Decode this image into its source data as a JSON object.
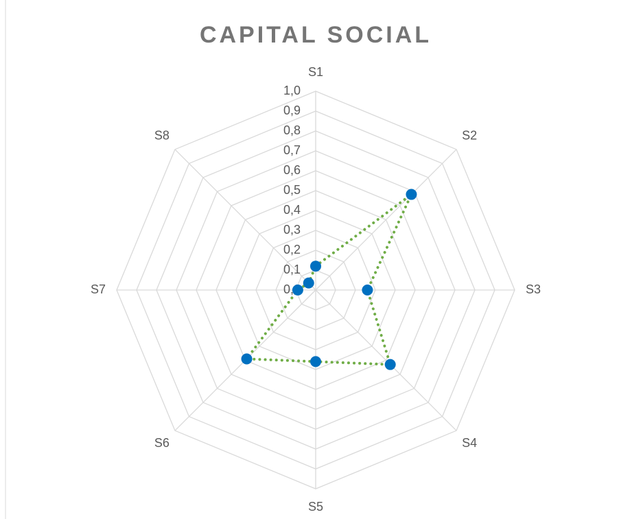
{
  "chart_data": {
    "type": "radar",
    "title": "CAPITAL SOCIAL",
    "categories": [
      "S1",
      "S2",
      "S3",
      "S4",
      "S5",
      "S6",
      "S7",
      "S8"
    ],
    "series": [
      {
        "name": "Capital social",
        "color": "#70ad47",
        "marker_color": "#0070c0",
        "values": [
          0.12,
          0.68,
          0.26,
          0.53,
          0.36,
          0.49,
          0.09,
          0.05
        ]
      }
    ],
    "ylim": [
      0,
      1
    ],
    "yticks": [
      {
        "value": 0,
        "label": "0,0"
      },
      {
        "value": 0.1,
        "label": "0,1"
      },
      {
        "value": 0.2,
        "label": "0,2"
      },
      {
        "value": 0.3,
        "label": "0,3"
      },
      {
        "value": 0.4,
        "label": "0,4"
      },
      {
        "value": 0.5,
        "label": "0,5"
      },
      {
        "value": 0.6,
        "label": "0,6"
      },
      {
        "value": 0.7,
        "label": "0,7"
      },
      {
        "value": 0.8,
        "label": "0,8"
      },
      {
        "value": 0.9,
        "label": "0,9"
      },
      {
        "value": 1,
        "label": "1,0"
      }
    ],
    "grid": true
  }
}
